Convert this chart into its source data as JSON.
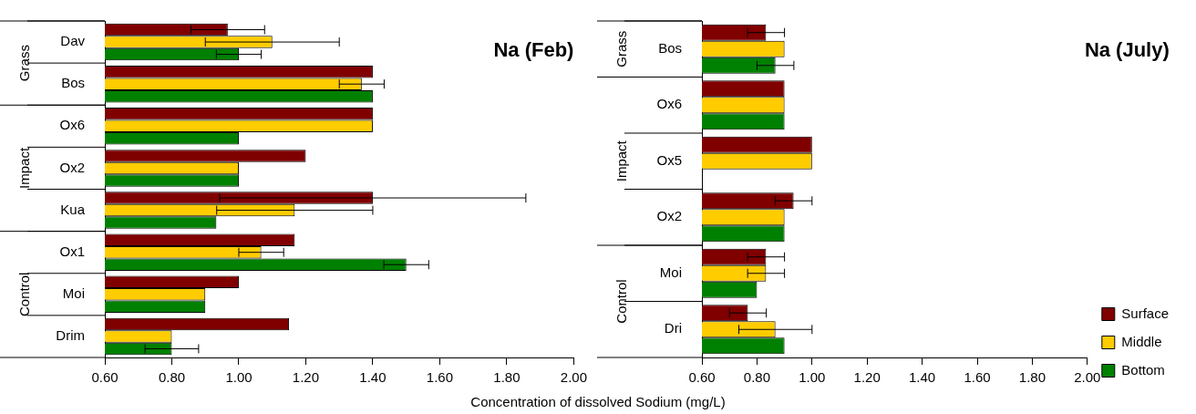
{
  "chart_data": [
    {
      "type": "bar",
      "orientation": "horizontal",
      "title": "Na (Feb)",
      "xlabel": "Concentration of dissolved Sodium (mg/L)",
      "categories": [
        "Dav",
        "Bos",
        "Ox6",
        "Ox2",
        "Kua",
        "Ox1",
        "Moi",
        "Drim"
      ],
      "annotations": [
        "Grass",
        "Impact",
        "Control"
      ],
      "series": [
        {
          "color": "#800000",
          "values": [
            0.967,
            1.4,
            1.4,
            1.2,
            1.4,
            1.167,
            1.0,
            1.15
          ],
          "errors": [
            0.11,
            null,
            null,
            null,
            0.457,
            null,
            null,
            null
          ]
        },
        {
          "color": "#ffcc00",
          "values": [
            1.1,
            1.367,
            1.4,
            1.0,
            1.167,
            1.067,
            0.9,
            0.8
          ],
          "errors": [
            0.2,
            0.067,
            null,
            null,
            0.233,
            0.067,
            null,
            null
          ]
        },
        {
          "color": "#008000",
          "values": [
            1.0,
            1.4,
            1.0,
            1.0,
            0.933,
            1.5,
            0.9,
            0.8
          ],
          "errors": [
            0.067,
            null,
            null,
            null,
            null,
            0.067,
            null,
            0.08
          ]
        }
      ],
      "xlim": [
        0.6,
        2.0
      ],
      "xticks": [
        {
          "value": 0.6,
          "label": "0.60"
        },
        {
          "value": 0.8,
          "label": "0.80"
        },
        {
          "value": 1.0,
          "label": "1.00"
        },
        {
          "value": 1.2,
          "label": "1.20"
        },
        {
          "value": 1.4,
          "label": "1.40"
        },
        {
          "value": 1.6,
          "label": "1.60"
        },
        {
          "value": 1.8,
          "label": "1.80"
        },
        {
          "value": 2.0,
          "label": "2.00"
        }
      ],
      "grid": false
    },
    {
      "type": "bar",
      "orientation": "horizontal",
      "title": "Na (July)",
      "categories": [
        "Bos",
        "Ox6",
        "Ox5",
        "Ox2",
        "Moi",
        "Dri"
      ],
      "annotations": [
        "Grass",
        "Impact",
        "Control"
      ],
      "series": [
        {
          "name": "Surface",
          "color": "#800000",
          "values": [
            0.833,
            0.9,
            1.0,
            0.933,
            0.833,
            0.767
          ],
          "errors": [
            0.067,
            null,
            null,
            0.067,
            0.067,
            0.067
          ]
        },
        {
          "name": "Middle",
          "color": "#ffcc00",
          "values": [
            0.9,
            0.9,
            1.0,
            0.9,
            0.833,
            0.867
          ],
          "errors": [
            null,
            null,
            null,
            null,
            0.067,
            0.133
          ]
        },
        {
          "name": "Bottom",
          "color": "#008000",
          "values": [
            0.867,
            0.9,
            null,
            0.9,
            0.8,
            0.9
          ],
          "errors": [
            0.067,
            null,
            null,
            null,
            null,
            null
          ]
        }
      ],
      "xlim": [
        0.6,
        2.0
      ],
      "xticks": [
        {
          "value": 0.6,
          "label": "0.60"
        },
        {
          "value": 0.8,
          "label": "0.80"
        },
        {
          "value": 1.0,
          "label": "1.00"
        },
        {
          "value": 1.2,
          "label": "1.20"
        },
        {
          "value": 1.4,
          "label": "1.40"
        },
        {
          "value": 1.6,
          "label": "1.60"
        },
        {
          "value": 1.8,
          "label": "1.80"
        },
        {
          "value": 2.0,
          "label": "2.00"
        }
      ],
      "grid": false,
      "legend": "bottom right"
    }
  ]
}
